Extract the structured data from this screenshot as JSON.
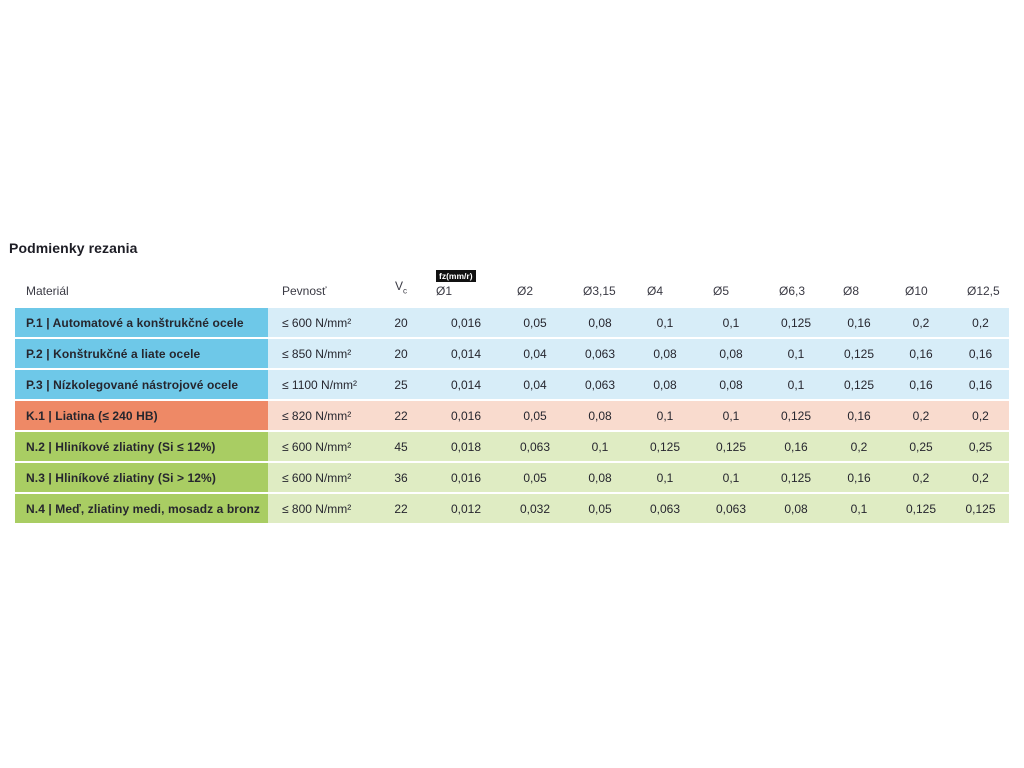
{
  "title": "Podmienky rezania",
  "colors": {
    "steel_dark": "#6ec8e8",
    "steel_light": "#d7edf8",
    "cast_iron_dark": "#ee8966",
    "cast_iron_light": "#f9dbce",
    "nonferrous_dark": "#a9cd63",
    "nonferrous_light": "#dfecc3",
    "badge_bg": "#111111",
    "badge_text": "#ffffff",
    "text": "#26262e",
    "header_text": "#3a3a44"
  },
  "table": {
    "headers": {
      "material": "Materiál",
      "pevnost": "Pevnosť",
      "vc_base": "V",
      "vc_sub": "c",
      "fz_badge": "fz(mm/r)",
      "diameters": [
        "Ø1",
        "Ø2",
        "Ø3,15",
        "Ø4",
        "Ø5",
        "Ø6,3",
        "Ø8",
        "Ø10",
        "Ø12,5"
      ]
    },
    "rows": [
      {
        "group": "P",
        "material": "P.1 | Automatové a konštrukčné ocele",
        "pevnost": "≤ 600 N/mm²",
        "vc": "20",
        "values": [
          "0,016",
          "0,05",
          "0,08",
          "0,1",
          "0,1",
          "0,125",
          "0,16",
          "0,2",
          "0,2"
        ]
      },
      {
        "group": "P",
        "material": "P.2 | Konštrukčné a liate ocele",
        "pevnost": "≤ 850 N/mm²",
        "vc": "20",
        "values": [
          "0,014",
          "0,04",
          "0,063",
          "0,08",
          "0,08",
          "0,1",
          "0,125",
          "0,16",
          "0,16"
        ]
      },
      {
        "group": "P",
        "material": "P.3 | Nízkolegované nástrojové ocele",
        "pevnost": "≤ 1100 N/mm²",
        "vc": "25",
        "values": [
          "0,014",
          "0,04",
          "0,063",
          "0,08",
          "0,08",
          "0,1",
          "0,125",
          "0,16",
          "0,16"
        ]
      },
      {
        "group": "K",
        "material": "K.1 | Liatina (≤ 240 HB)",
        "pevnost": "≤ 820 N/mm²",
        "vc": "22",
        "values": [
          "0,016",
          "0,05",
          "0,08",
          "0,1",
          "0,1",
          "0,125",
          "0,16",
          "0,2",
          "0,2"
        ]
      },
      {
        "group": "N",
        "material": "N.2 | Hliníkové zliatiny (Si ≤ 12%)",
        "pevnost": "≤ 600 N/mm²",
        "vc": "45",
        "values": [
          "0,018",
          "0,063",
          "0,1",
          "0,125",
          "0,125",
          "0,16",
          "0,2",
          "0,25",
          "0,25"
        ]
      },
      {
        "group": "N",
        "material": "N.3 | Hliníkové zliatiny (Si > 12%)",
        "pevnost": "≤ 600 N/mm²",
        "vc": "36",
        "values": [
          "0,016",
          "0,05",
          "0,08",
          "0,1",
          "0,1",
          "0,125",
          "0,16",
          "0,2",
          "0,2"
        ]
      },
      {
        "group": "N",
        "material": "N.4 | Meď, zliatiny medi, mosadz a bronz",
        "pevnost": "≤ 800 N/mm²",
        "vc": "22",
        "values": [
          "0,012",
          "0,032",
          "0,05",
          "0,063",
          "0,063",
          "0,08",
          "0,1",
          "0,125",
          "0,125"
        ]
      }
    ]
  }
}
